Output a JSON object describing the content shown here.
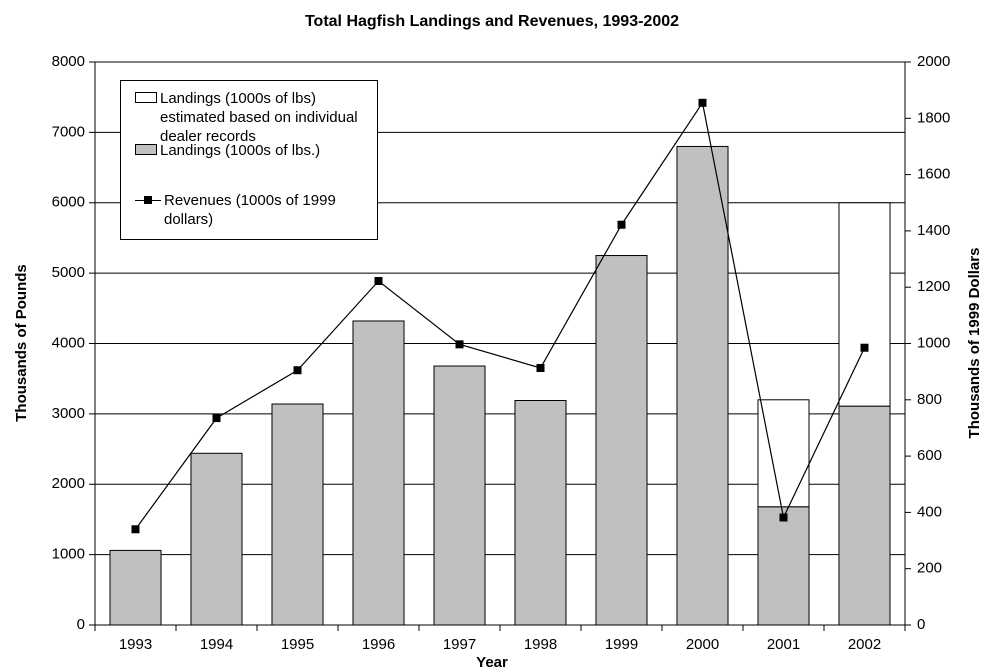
{
  "chart_data": {
    "type": "bar",
    "title": "Total Hagfish Landings and Revenues, 1993-2002",
    "x_label": "Year",
    "y_label": "Thousands of Pounds",
    "y2_label": "Thousands of 1999 Dollars",
    "categories": [
      "1993",
      "1994",
      "1995",
      "1996",
      "1997",
      "1998",
      "1999",
      "2000",
      "2001",
      "2002"
    ],
    "series": [
      {
        "name": "Landings (1000s of lbs) estimated based on individual dealer records",
        "type": "bar",
        "color": "#ffffff",
        "values": [
          null,
          null,
          null,
          null,
          null,
          null,
          null,
          null,
          1520,
          2890
        ]
      },
      {
        "name": "Landings (1000s of lbs.)",
        "type": "bar",
        "color": "#c0c0c0",
        "values": [
          1060,
          2440,
          3140,
          4320,
          3680,
          3190,
          5250,
          6800,
          1680,
          3110
        ]
      },
      {
        "name": "Revenues (1000s of 1999 dollars)",
        "type": "line",
        "axis": "y2",
        "color": "#000000",
        "values": [
          340,
          735,
          905,
          1222,
          997,
          913,
          1422,
          1855,
          382,
          985
        ]
      }
    ],
    "ylim": [
      0,
      8000
    ],
    "yticks": [
      0,
      1000,
      2000,
      3000,
      4000,
      5000,
      6000,
      7000,
      8000
    ],
    "y2lim": [
      0,
      2000
    ],
    "y2ticks": [
      0,
      200,
      400,
      600,
      800,
      1000,
      1200,
      1400,
      1600,
      1800,
      2000
    ],
    "grid": true,
    "legend": "top-left"
  }
}
